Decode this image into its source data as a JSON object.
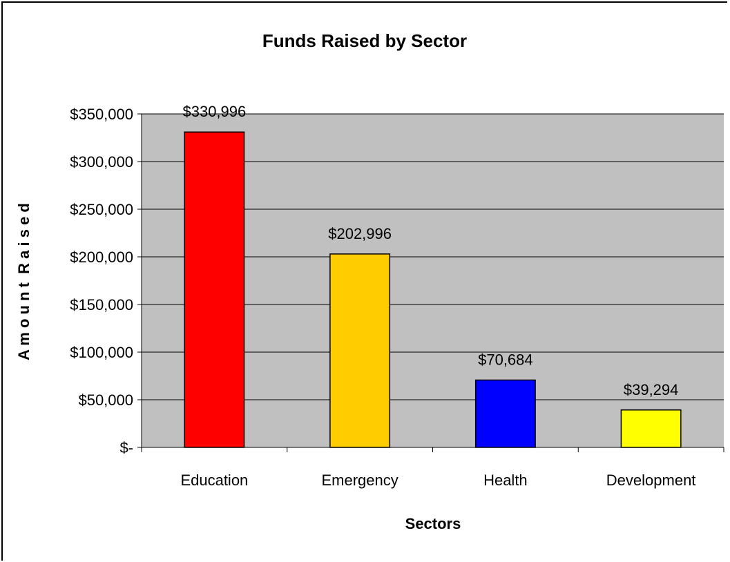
{
  "chart_data": {
    "type": "bar",
    "title": "Funds Raised by Sector",
    "xlabel": "Sectors",
    "ylabel": "A m o u n t  R a i s e d",
    "categories": [
      "Education",
      "Emergency",
      "Health",
      "Development"
    ],
    "values": [
      330996,
      202996,
      70684,
      39294
    ],
    "data_labels": [
      "$330,996",
      "$202,996",
      "$70,684",
      "$39,294"
    ],
    "bar_colors": [
      "#ff0000",
      "#ffcc00",
      "#0000ff",
      "#ffff00"
    ],
    "ylim": [
      0,
      350000
    ],
    "y_ticks": [
      0,
      50000,
      100000,
      150000,
      200000,
      250000,
      300000,
      350000
    ],
    "y_tick_labels": [
      "$-",
      "$50,000",
      "$100,000",
      "$150,000",
      "$200,000",
      "$250,000",
      "$300,000",
      "$350,000"
    ],
    "plot_background": "#c0c0c0",
    "gridlines": true,
    "legend": "none"
  }
}
